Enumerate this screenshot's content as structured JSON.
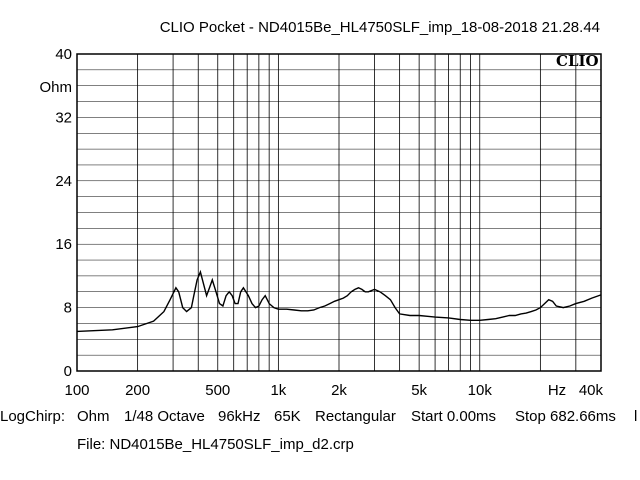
{
  "title": "CLIO Pocket - ND4015Be_HL4750SLF_imp_18-08-2018 21.28.44",
  "logo_text": "CLIO",
  "status": {
    "mode": "LogChirp:",
    "unit": "Ohm",
    "smoothing": "1/48 Octave",
    "sample_rate": "96kHz",
    "points": "65K",
    "window": "Rectangular",
    "start": "Start 0.00ms",
    "stop": "Stop 682.66ms",
    "trailing": "l"
  },
  "file_label": "File: ND4015Be_HL4750SLF_imp_d2.crp",
  "colors": {
    "background": "#ffffff",
    "grid": "#000000",
    "trace": "#000000"
  },
  "chart_data": {
    "type": "line",
    "x_scale": "log",
    "xlim": [
      100,
      40000
    ],
    "ylim": [
      0,
      40
    ],
    "grid": true,
    "ylabel": "Ohm",
    "xlabel": "Hz",
    "x_ticks": [
      {
        "value": 100,
        "label": "100"
      },
      {
        "value": 200,
        "label": "200"
      },
      {
        "value": 500,
        "label": "500"
      },
      {
        "value": 1000,
        "label": "1k"
      },
      {
        "value": 2000,
        "label": "2k"
      },
      {
        "value": 5000,
        "label": "5k"
      },
      {
        "value": 10000,
        "label": "10k"
      },
      {
        "value": 40000,
        "label": "40k"
      }
    ],
    "y_ticks": [
      {
        "value": 0,
        "label": "0"
      },
      {
        "value": 8,
        "label": "8"
      },
      {
        "value": 16,
        "label": "16"
      },
      {
        "value": 24,
        "label": "24"
      },
      {
        "value": 32,
        "label": "32"
      },
      {
        "value": 40,
        "label": "40"
      }
    ],
    "series": [
      {
        "x": [
          100,
          150,
          200,
          240,
          270,
          290,
          310,
          320,
          335,
          350,
          370,
          380,
          395,
          410,
          425,
          440,
          455,
          470,
          490,
          510,
          530,
          550,
          570,
          590,
          610,
          630,
          650,
          670,
          690,
          710,
          740,
          770,
          800,
          830,
          860,
          900,
          950,
          1000,
          1050,
          1100,
          1200,
          1300,
          1400,
          1500,
          1600,
          1700,
          1800,
          1900,
          2000,
          2100,
          2200,
          2300,
          2400,
          2500,
          2600,
          2700,
          2800,
          3000,
          3200,
          3400,
          3600,
          3800,
          4000,
          4500,
          5000,
          5500,
          6000,
          7000,
          8000,
          9000,
          10000,
          11000,
          12000,
          13000,
          14000,
          15000,
          16000,
          17000,
          18000,
          19000,
          20000,
          21000,
          22000,
          23000,
          24000,
          26000,
          28000,
          30000,
          33000,
          36000,
          40000
        ],
        "y": [
          5.0,
          5.2,
          5.6,
          6.3,
          7.5,
          9.0,
          10.5,
          10.0,
          8.0,
          7.5,
          8.0,
          9.5,
          11.5,
          12.5,
          11.0,
          9.5,
          10.5,
          11.5,
          10.0,
          8.5,
          8.2,
          9.5,
          10.0,
          9.5,
          8.5,
          8.5,
          10.0,
          10.5,
          10.0,
          9.5,
          8.5,
          8.0,
          8.2,
          9.0,
          9.5,
          8.5,
          8.0,
          7.8,
          7.8,
          7.8,
          7.7,
          7.6,
          7.6,
          7.7,
          8.0,
          8.2,
          8.5,
          8.8,
          9.0,
          9.2,
          9.5,
          10.0,
          10.3,
          10.5,
          10.3,
          10.0,
          10.0,
          10.3,
          10.0,
          9.5,
          9.0,
          8.0,
          7.2,
          7.0,
          7.0,
          6.9,
          6.8,
          6.7,
          6.5,
          6.4,
          6.4,
          6.5,
          6.6,
          6.8,
          7.0,
          7.0,
          7.2,
          7.3,
          7.5,
          7.7,
          8.0,
          8.5,
          9.0,
          8.8,
          8.2,
          8.0,
          8.2,
          8.5,
          8.8,
          9.2,
          9.6
        ]
      }
    ]
  }
}
